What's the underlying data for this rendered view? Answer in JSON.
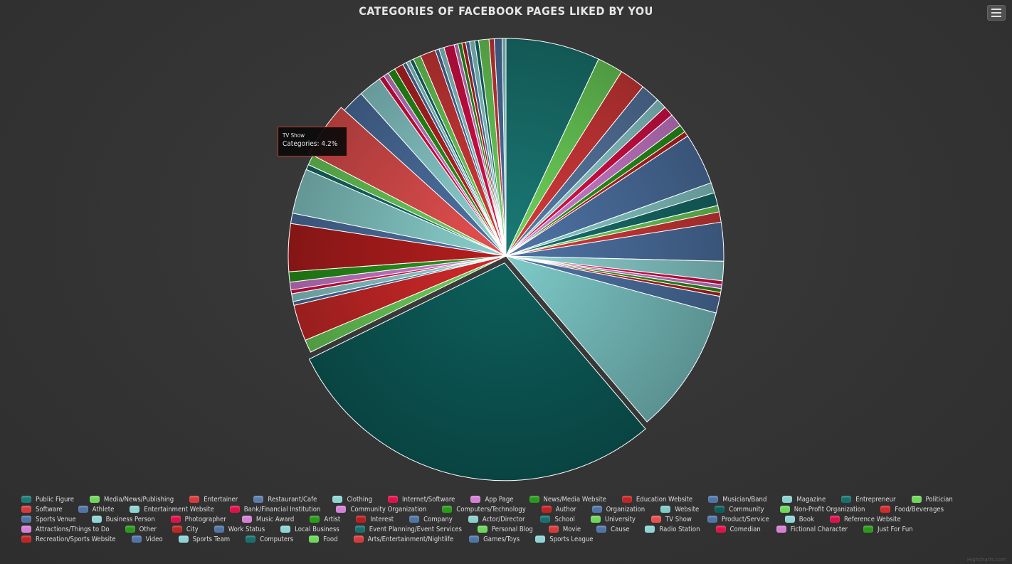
{
  "chart_data": {
    "type": "pie",
    "title": "CATEGORIES OF FACEBOOK PAGES LIKED BY YOU",
    "series_name": "Categories",
    "tooltip": {
      "category": "TV Show",
      "label": "Categories",
      "value": "4.2%"
    },
    "slices": [
      {
        "name": "Public Figure",
        "value": 7.3,
        "color": "#1a7a76"
      },
      {
        "name": "Media/News/Publishing",
        "value": 2.0,
        "color": "#6fd65c"
      },
      {
        "name": "Entertainer",
        "value": 2.0,
        "color": "#d83a3a"
      },
      {
        "name": "Restaurant/Cafe",
        "value": 1.5,
        "color": "#5a7ca8"
      },
      {
        "name": "Clothing",
        "value": 0.8,
        "color": "#8fd4d4"
      },
      {
        "name": "Internet/Software",
        "value": 0.8,
        "color": "#e0104a"
      },
      {
        "name": "App Page",
        "value": 1.0,
        "color": "#d580d5"
      },
      {
        "name": "News/Media Website",
        "value": 0.6,
        "color": "#2a9a1a"
      },
      {
        "name": "Education Website",
        "value": 0.4,
        "color": "#c02424"
      },
      {
        "name": "Musician/Band",
        "value": 4.0,
        "color": "#4f74a6"
      },
      {
        "name": "Magazine",
        "value": 0.8,
        "color": "#8ad0cd"
      },
      {
        "name": "Entrepreneur",
        "value": 1.0,
        "color": "#17706e"
      },
      {
        "name": "Politician",
        "value": 0.5,
        "color": "#6fd65c"
      },
      {
        "name": "Software",
        "value": 0.8,
        "color": "#d83a3a"
      },
      {
        "name": "Athlete",
        "value": 3.0,
        "color": "#4f74a6"
      },
      {
        "name": "Entertainment Website",
        "value": 1.5,
        "color": "#8fd4d4"
      },
      {
        "name": "Bank/Financial Institution",
        "value": 0.3,
        "color": "#e0104a"
      },
      {
        "name": "Community Organization",
        "value": 0.3,
        "color": "#d580d5"
      },
      {
        "name": "Computers/Technology",
        "value": 0.3,
        "color": "#2a9a1a"
      },
      {
        "name": "Author",
        "value": 0.3,
        "color": "#c02424"
      },
      {
        "name": "Organization",
        "value": 1.3,
        "color": "#4f74a6"
      },
      {
        "name": "Website",
        "value": 10.0,
        "color": "#7ecbca"
      },
      {
        "name": "Community",
        "value": 30.2,
        "color": "#0d5f5b"
      },
      {
        "name": "Non-Profit Organization",
        "value": 1.0,
        "color": "#6fd65c"
      },
      {
        "name": "Food/Beverages",
        "value": 2.8,
        "color": "#d32a2a"
      },
      {
        "name": "Sports Venue",
        "value": 0.3,
        "color": "#4f74a6"
      },
      {
        "name": "Business Person",
        "value": 0.6,
        "color": "#8fd4d4"
      },
      {
        "name": "Photographer",
        "value": 0.3,
        "color": "#e0104a"
      },
      {
        "name": "Music Award",
        "value": 0.6,
        "color": "#d580d5"
      },
      {
        "name": "Artist",
        "value": 0.8,
        "color": "#2a9a1a"
      },
      {
        "name": "Interest",
        "value": 3.7,
        "color": "#b81e1e"
      },
      {
        "name": "Company",
        "value": 0.8,
        "color": "#4f74a6"
      },
      {
        "name": "Actor/Director",
        "value": 3.5,
        "color": "#8ad0cd"
      },
      {
        "name": "School",
        "value": 0.4,
        "color": "#17706e"
      },
      {
        "name": "University",
        "value": 0.8,
        "color": "#6fd65c"
      },
      {
        "name": "TV Show",
        "value": 4.2,
        "color": "#e85050"
      },
      {
        "name": "Product/Service",
        "value": 1.8,
        "color": "#4f74a6"
      },
      {
        "name": "Book",
        "value": 1.8,
        "color": "#8fd4d4"
      },
      {
        "name": "Reference Website",
        "value": 0.4,
        "color": "#e0104a"
      },
      {
        "name": "Attractions/Things to Do",
        "value": 0.4,
        "color": "#d580d5"
      },
      {
        "name": "Other",
        "value": 0.6,
        "color": "#2a9a1a"
      },
      {
        "name": "City",
        "value": 0.7,
        "color": "#c02424"
      },
      {
        "name": "Work Status",
        "value": 0.3,
        "color": "#4f74a6"
      },
      {
        "name": "Local Business",
        "value": 0.3,
        "color": "#8fd4d4"
      },
      {
        "name": "Event Planning/Event Services",
        "value": 0.3,
        "color": "#17706e"
      },
      {
        "name": "Personal Blog",
        "value": 0.6,
        "color": "#6fd65c"
      },
      {
        "name": "Movie",
        "value": 1.2,
        "color": "#d83a3a"
      },
      {
        "name": "Cause",
        "value": 0.3,
        "color": "#4f74a6"
      },
      {
        "name": "Radio Station",
        "value": 0.4,
        "color": "#8fd4d4"
      },
      {
        "name": "Comedian",
        "value": 0.8,
        "color": "#e0104a"
      },
      {
        "name": "Fictional Character",
        "value": 0.3,
        "color": "#d580d5"
      },
      {
        "name": "Just For Fun",
        "value": 0.3,
        "color": "#2a9a1a"
      },
      {
        "name": "Recreation/Sports Website",
        "value": 0.3,
        "color": "#c02424"
      },
      {
        "name": "Video",
        "value": 0.3,
        "color": "#4f74a6"
      },
      {
        "name": "Sports Team",
        "value": 0.4,
        "color": "#8fd4d4"
      },
      {
        "name": "Computers",
        "value": 0.3,
        "color": "#17706e"
      },
      {
        "name": "Food",
        "value": 0.8,
        "color": "#6fd65c"
      },
      {
        "name": "Arts/Entertainment/Nightlife",
        "value": 0.4,
        "color": "#d83a3a"
      },
      {
        "name": "Games/Toys",
        "value": 0.6,
        "color": "#4f74a6"
      },
      {
        "name": "Sports League",
        "value": 0.3,
        "color": "#8fd4d4"
      }
    ],
    "sliced": [
      "Community"
    ],
    "hovered": "TV Show",
    "legend_placement": "bottom"
  },
  "credits": "Highcharts.com",
  "menu_icon": "hamburger-menu-icon"
}
